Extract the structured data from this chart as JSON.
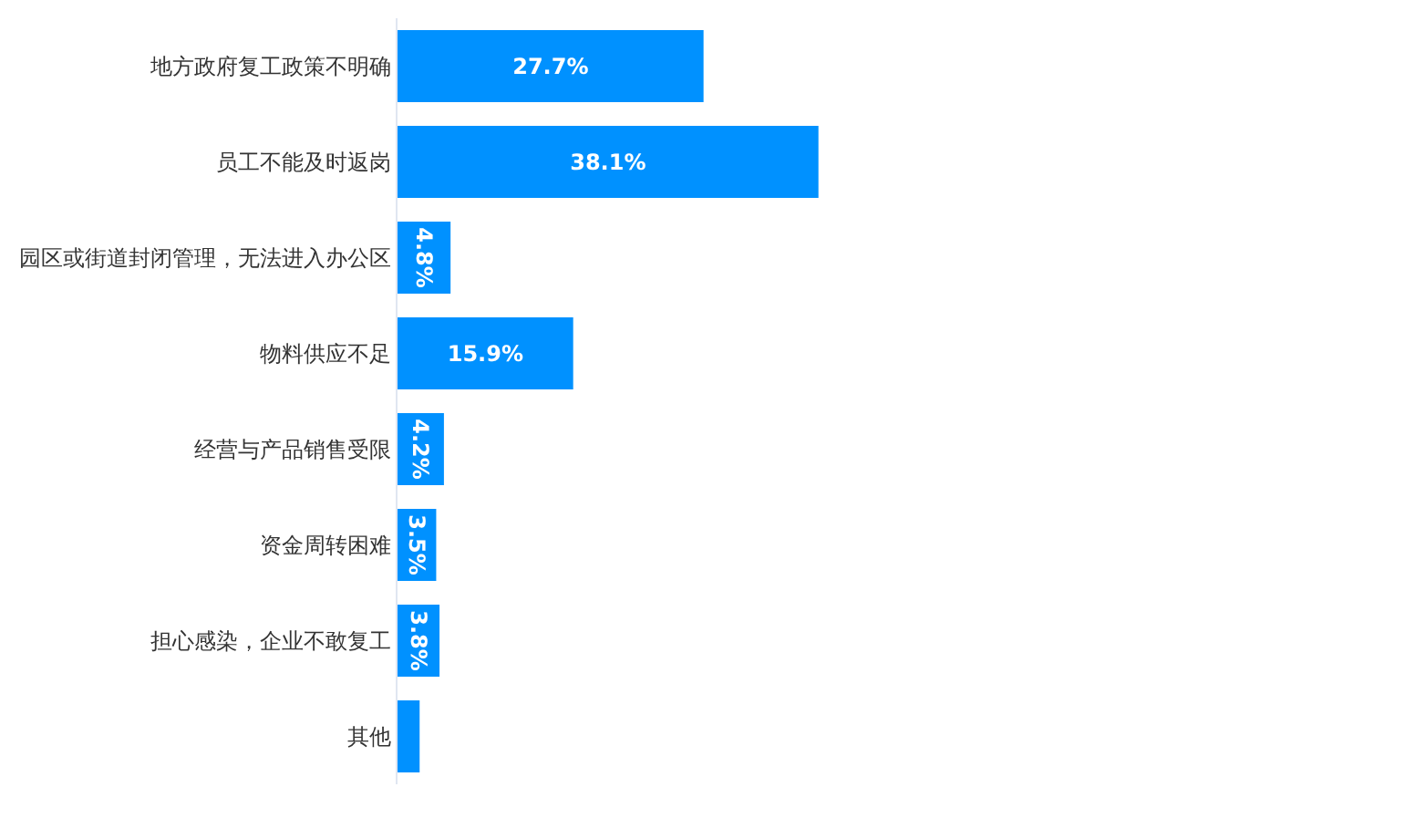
{
  "chart_data": {
    "type": "bar",
    "orientation": "horizontal",
    "categories": [
      "地方政府复工政策不明确",
      "员工不能及时返岗",
      "园区或街道封闭管理，无法进入办公区",
      "物料供应不足",
      "经营与产品销售受限",
      "资金周转困难",
      "担心感染，企业不敢复工",
      "其他"
    ],
    "values": [
      27.7,
      38.1,
      4.8,
      15.9,
      4.2,
      3.5,
      3.8,
      2.0
    ],
    "value_labels": [
      "27.7%",
      "38.1%",
      "4.8%",
      "15.9%",
      "4.2%",
      "3.5%",
      "3.8%",
      null
    ],
    "color": "#0091ff",
    "grid": false,
    "legend": false
  }
}
